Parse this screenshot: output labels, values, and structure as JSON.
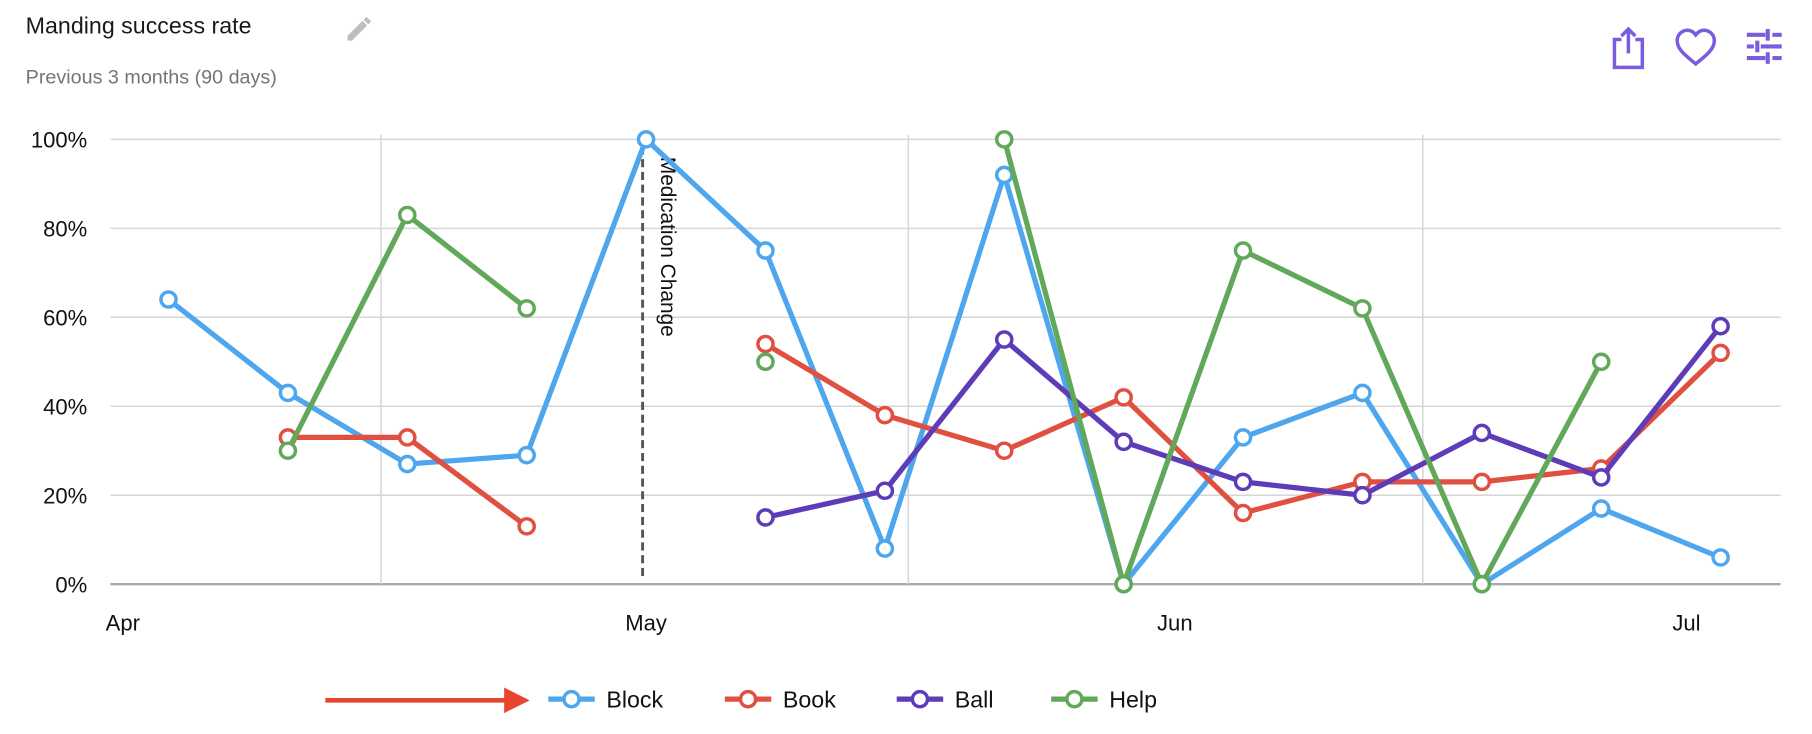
{
  "header": {
    "title": "Manding success rate",
    "subtitle": "Previous 3 months (90 days)",
    "icons": {
      "edit": "pencil-icon",
      "share": "share-icon",
      "favorite": "heart-icon",
      "settings": "tune-sliders-icon"
    },
    "icon_color": "#7B5BE0"
  },
  "chart_data": {
    "type": "line",
    "title": "Manding success rate",
    "subtitle": "Previous 3 months (90 days)",
    "x": [
      "Apr 3",
      "Apr 10",
      "Apr 17",
      "Apr 24",
      "May 1",
      "May 8",
      "May 15",
      "May 22",
      "May 29",
      "Jun 5",
      "Jun 12",
      "Jun 19",
      "Jun 26",
      "Jul 3"
    ],
    "x_ticks": [
      "Apr",
      "May",
      "Jun",
      "Jul"
    ],
    "y_ticks": [
      "0%",
      "20%",
      "40%",
      "60%",
      "80%",
      "100%"
    ],
    "ylim": [
      0,
      100
    ],
    "y_unit": "%",
    "grid": true,
    "legend_position": "bottom",
    "series": [
      {
        "name": "Block",
        "color": "#4DA6EE",
        "values": [
          64,
          43,
          27,
          29,
          100,
          75,
          8,
          92,
          0,
          33,
          43,
          0,
          17,
          6
        ]
      },
      {
        "name": "Book",
        "color": "#E05040",
        "values": [
          null,
          33,
          33,
          13,
          null,
          54,
          38,
          30,
          42,
          16,
          23,
          23,
          26,
          52
        ]
      },
      {
        "name": "Ball",
        "color": "#5E3CB8",
        "values": [
          null,
          null,
          null,
          null,
          null,
          15,
          21,
          55,
          32,
          23,
          20,
          34,
          24,
          58
        ]
      },
      {
        "name": "Help",
        "color": "#62A85A",
        "values": [
          null,
          30,
          83,
          62,
          null,
          50,
          null,
          100,
          0,
          75,
          62,
          0,
          50,
          null
        ]
      }
    ],
    "annotations": [
      {
        "x": "May 1",
        "label": "Medication Change",
        "style": "dashed-vertical-line"
      }
    ],
    "legend_arrow_color": "#E8442E"
  }
}
